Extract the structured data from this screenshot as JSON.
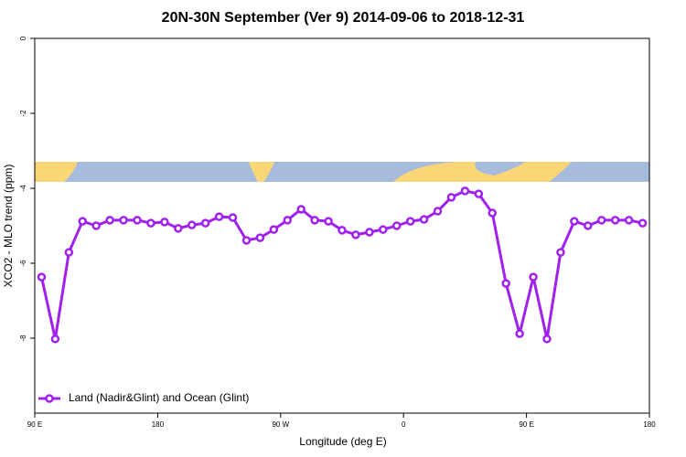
{
  "chart_data": {
    "type": "line",
    "title": "20N-30N September (Ver 9)   2014-09-06 to 2018-12-31",
    "x_label": "Longitude (deg E)",
    "y_label": "XCO2 - MLO trend (ppm)",
    "xlim": [
      90,
      540
    ],
    "xticks": [
      {
        "value": 90,
        "label": "90 E"
      },
      180,
      {
        "value": 270,
        "label": "90 W"
      },
      {
        "value": 360,
        "label": "0"
      },
      {
        "value": 450,
        "label": "90 E"
      },
      {
        "value": 540,
        "label": "180"
      }
    ],
    "ylim": [
      -10,
      0
    ],
    "yticks": [
      0,
      -2,
      -4,
      -6,
      -8
    ],
    "legend": "bottom-left",
    "x": [
      95,
      105,
      115,
      125,
      135,
      145,
      155,
      165,
      175,
      185,
      195,
      205,
      215,
      225,
      235,
      245,
      255,
      265,
      275,
      285,
      295,
      305,
      315,
      325,
      335,
      345,
      355,
      365,
      375,
      385,
      395,
      405,
      415,
      425,
      435,
      445,
      455,
      465,
      475,
      485,
      495,
      505,
      515,
      525,
      535
    ],
    "series": [
      {
        "name": "Land (Nadir&Glint) and Ocean (Glint)",
        "color": "#a020f0",
        "values": [
          -6.37,
          -8.02,
          -5.71,
          -4.88,
          -5.0,
          -4.85,
          -4.85,
          -4.85,
          -4.93,
          -4.9,
          -5.07,
          -4.98,
          -4.93,
          -4.76,
          -4.78,
          -5.39,
          -5.32,
          -5.1,
          -4.85,
          -4.56,
          -4.85,
          -4.88,
          -5.12,
          -5.24,
          -5.17,
          -5.1,
          -5.0,
          -4.88,
          -4.83,
          -4.61,
          -4.24,
          -4.07,
          -4.15,
          -4.66,
          -6.54,
          -7.88,
          -6.37,
          -8.02,
          -5.71,
          -4.88,
          -5.0,
          -4.85,
          -4.85,
          -4.85,
          -4.93
        ]
      }
    ]
  }
}
